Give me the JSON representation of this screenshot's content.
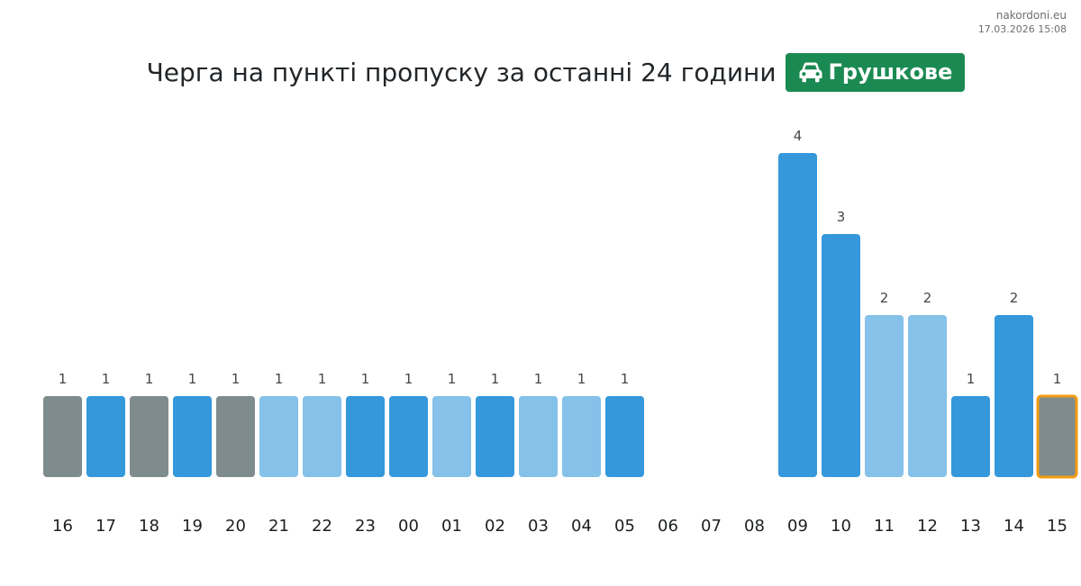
{
  "site": {
    "domain": "nakordoni.eu",
    "timestamp": "17.03.2026 15:08"
  },
  "header": {
    "title": "Черга на пункті пропуску за останні 24 години",
    "checkpoint": "Грушкове",
    "checkpoint_icon": "car-icon",
    "badge_color": "#1b8a52"
  },
  "colors": {
    "gray": "#7f8c8d",
    "blue": "#3498db",
    "light": "#85c1e9",
    "highlight_outline": "#f39c12"
  },
  "chart_data": {
    "type": "bar",
    "title": "Черга на пункті пропуску за останні 24 години",
    "xlabel": "",
    "ylabel": "",
    "ylim": [
      0,
      4
    ],
    "grid": false,
    "categories": [
      "16",
      "17",
      "18",
      "19",
      "20",
      "21",
      "22",
      "23",
      "00",
      "01",
      "02",
      "03",
      "04",
      "05",
      "06",
      "07",
      "08",
      "09",
      "10",
      "11",
      "12",
      "13",
      "14",
      "15"
    ],
    "values": [
      1,
      1,
      1,
      1,
      1,
      1,
      1,
      1,
      1,
      1,
      1,
      1,
      1,
      1,
      null,
      null,
      null,
      4,
      3,
      2,
      2,
      1,
      2,
      1
    ],
    "bar_colors": [
      "gray",
      "blue",
      "gray",
      "blue",
      "gray",
      "light",
      "light",
      "blue",
      "blue",
      "light",
      "blue",
      "light",
      "light",
      "blue",
      null,
      null,
      null,
      "blue",
      "blue",
      "light",
      "light",
      "blue",
      "blue",
      "gray"
    ],
    "highlighted_category": "15"
  }
}
